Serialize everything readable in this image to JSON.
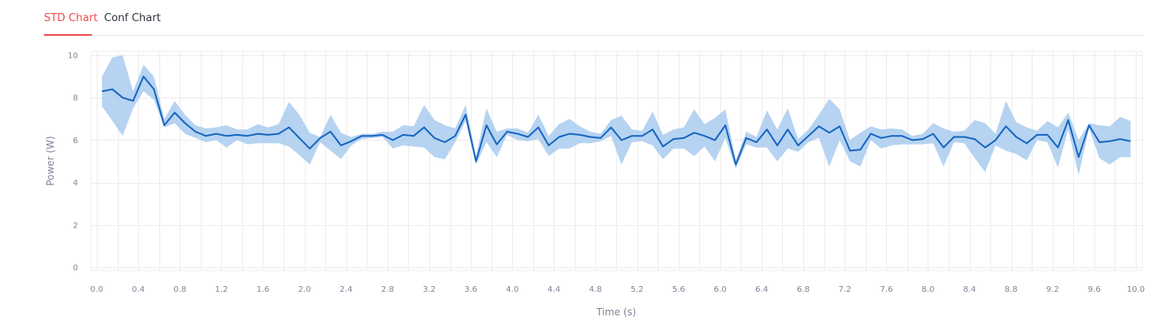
{
  "tabs": [
    {
      "label": "STD Chart",
      "active": true
    },
    {
      "label": "Conf Chart",
      "active": false
    }
  ],
  "colors": {
    "active_tab": "#f04c4c",
    "line": "#1565c0",
    "band": "#a9cbee",
    "grid": "#ececec"
  },
  "chart_data": {
    "type": "line",
    "xlabel": "Time (s)",
    "ylabel": "Power (W)",
    "xlim": [
      0.0,
      10.0
    ],
    "ylim": [
      0,
      10
    ],
    "xticks": [
      0.0,
      0.4,
      0.8,
      1.2,
      1.6,
      2.0,
      2.4,
      2.8,
      3.2,
      3.6,
      4.0,
      4.4,
      4.8,
      5.2,
      5.6,
      6.0,
      6.4,
      6.8,
      7.2,
      7.6,
      8.0,
      8.4,
      8.8,
      9.2,
      9.6,
      10.0
    ],
    "yticks": [
      0,
      2,
      4,
      6,
      8,
      10
    ],
    "grid": true,
    "band": "± standard deviation",
    "series": [
      {
        "x": [
          0.05,
          0.15,
          0.25,
          0.35,
          0.45,
          0.55,
          0.65,
          0.75,
          0.85,
          0.95,
          1.05,
          1.15,
          1.25,
          1.35,
          1.45,
          1.55,
          1.65,
          1.75,
          1.85,
          1.95,
          2.05,
          2.15,
          2.25,
          2.35,
          2.45,
          2.55,
          2.65,
          2.75,
          2.85,
          2.95,
          3.05,
          3.15,
          3.25,
          3.35,
          3.45,
          3.55,
          3.65,
          3.75,
          3.85,
          3.95,
          4.05,
          4.15,
          4.25,
          4.35,
          4.45,
          4.55,
          4.65,
          4.75,
          4.85,
          4.95,
          5.05,
          5.15,
          5.25,
          5.35,
          5.45,
          5.55,
          5.65,
          5.75,
          5.85,
          5.95,
          6.05,
          6.15,
          6.25,
          6.35,
          6.45,
          6.55,
          6.65,
          6.75,
          6.85,
          6.95,
          7.05,
          7.15,
          7.25,
          7.35,
          7.45,
          7.55,
          7.65,
          7.75,
          7.85,
          7.95,
          8.05,
          8.15,
          8.25,
          8.35,
          8.45,
          8.55,
          8.65,
          8.75,
          8.85,
          8.95,
          9.05,
          9.15,
          9.25,
          9.35,
          9.45,
          9.55,
          9.65,
          9.75,
          9.85,
          9.95
        ],
        "y": [
          8.3,
          8.4,
          8.0,
          7.85,
          9.0,
          8.4,
          6.7,
          7.3,
          6.8,
          6.4,
          6.2,
          6.3,
          6.2,
          6.25,
          6.2,
          6.3,
          6.25,
          6.3,
          6.6,
          6.1,
          5.6,
          6.1,
          6.4,
          5.75,
          5.95,
          6.2,
          6.2,
          6.25,
          6.0,
          6.25,
          6.2,
          6.6,
          6.1,
          5.9,
          6.2,
          7.2,
          5.0,
          6.7,
          5.8,
          6.4,
          6.3,
          6.15,
          6.6,
          5.75,
          6.15,
          6.3,
          6.25,
          6.15,
          6.1,
          6.6,
          6.0,
          6.2,
          6.2,
          6.5,
          5.7,
          6.05,
          6.1,
          6.35,
          6.2,
          6.0,
          6.7,
          4.85,
          6.1,
          5.9,
          6.5,
          5.75,
          6.5,
          5.75,
          6.2,
          6.65,
          6.35,
          6.65,
          5.5,
          5.55,
          6.3,
          6.1,
          6.2,
          6.2,
          6.0,
          6.05,
          6.3,
          5.65,
          6.15,
          6.15,
          6.05,
          5.65,
          6.0,
          6.65,
          6.15,
          5.85,
          6.25,
          6.25,
          5.65,
          6.95,
          5.2,
          6.7,
          5.9,
          5.95,
          6.05,
          5.95
        ],
        "lower": [
          7.6,
          6.9,
          6.2,
          7.5,
          8.3,
          7.9,
          6.6,
          6.8,
          6.3,
          6.1,
          5.9,
          6.0,
          5.65,
          6.0,
          5.8,
          5.85,
          5.85,
          5.85,
          5.7,
          5.3,
          4.85,
          5.9,
          5.5,
          5.1,
          5.75,
          6.05,
          6.1,
          6.15,
          5.6,
          5.75,
          5.7,
          5.65,
          5.2,
          5.1,
          5.9,
          6.9,
          4.85,
          5.9,
          5.2,
          6.25,
          6.0,
          5.95,
          6.05,
          5.25,
          5.6,
          5.6,
          5.85,
          5.85,
          5.95,
          6.2,
          4.85,
          5.9,
          5.95,
          5.75,
          5.1,
          5.6,
          5.6,
          5.25,
          5.7,
          5.0,
          6.1,
          4.65,
          5.8,
          5.65,
          5.65,
          5.0,
          5.6,
          5.45,
          5.9,
          6.1,
          4.75,
          6.0,
          5.0,
          4.75,
          6.0,
          5.6,
          5.75,
          5.8,
          5.8,
          5.8,
          5.85,
          4.75,
          5.9,
          5.85,
          5.15,
          4.5,
          5.75,
          5.5,
          5.35,
          5.05,
          6.0,
          5.9,
          4.7,
          6.5,
          4.35,
          6.55,
          5.15,
          4.85,
          5.2,
          5.2
        ],
        "upper": [
          9.0,
          9.9,
          10.0,
          8.3,
          9.55,
          9.0,
          7.0,
          7.85,
          7.2,
          6.7,
          6.55,
          6.6,
          6.7,
          6.5,
          6.5,
          6.75,
          6.6,
          6.75,
          7.8,
          7.2,
          6.35,
          6.15,
          7.2,
          6.35,
          6.15,
          6.3,
          6.3,
          6.4,
          6.4,
          6.7,
          6.65,
          7.65,
          6.95,
          6.7,
          6.55,
          7.65,
          5.25,
          7.5,
          6.4,
          6.55,
          6.55,
          6.35,
          7.2,
          6.2,
          6.75,
          7.0,
          6.65,
          6.4,
          6.3,
          6.95,
          7.15,
          6.5,
          6.45,
          7.35,
          6.25,
          6.5,
          6.6,
          7.45,
          6.75,
          7.05,
          7.45,
          5.05,
          6.4,
          6.15,
          7.4,
          6.5,
          7.5,
          6.05,
          6.5,
          7.2,
          7.95,
          7.45,
          6.0,
          6.35,
          6.65,
          6.5,
          6.55,
          6.5,
          6.2,
          6.3,
          6.8,
          6.55,
          6.4,
          6.45,
          6.95,
          6.8,
          6.3,
          7.85,
          6.85,
          6.6,
          6.45,
          6.9,
          6.6,
          7.3,
          6.0,
          6.8,
          6.7,
          6.65,
          7.1,
          6.9
        ]
      }
    ]
  }
}
